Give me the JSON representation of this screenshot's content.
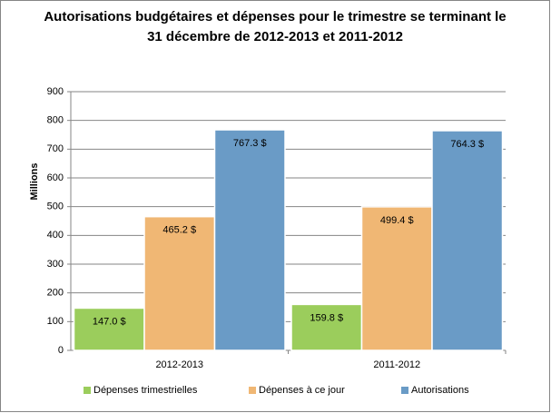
{
  "chart_data": {
    "type": "bar",
    "title": [
      "Autorisations budgétaires et dépenses pour le trimestre se terminant le",
      "31 décembre de 2012-2013 et 2011-2012"
    ],
    "ylabel": "Millions",
    "categories": [
      "2012-2013",
      "2011-2012"
    ],
    "series": [
      {
        "name": "Dépenses trimestrielles",
        "color": "#9bcd5c",
        "values": [
          147.0,
          159.8
        ],
        "value_labels": [
          "147.0 $",
          "159.8 $"
        ]
      },
      {
        "name": "Dépenses à ce jour",
        "color": "#f0b774",
        "values": [
          465.2,
          499.4
        ],
        "value_labels": [
          "465.2 $",
          "499.4 $"
        ]
      },
      {
        "name": "Autorisations",
        "color": "#6a9bc6",
        "values": [
          767.3,
          764.3
        ],
        "value_labels": [
          "767.3 $",
          "764.3 $"
        ]
      }
    ],
    "ylim": [
      0,
      900
    ],
    "yticks": [
      0,
      100,
      200,
      300,
      400,
      500,
      600,
      700,
      800,
      900
    ],
    "grid": true,
    "legend": "bottom"
  }
}
